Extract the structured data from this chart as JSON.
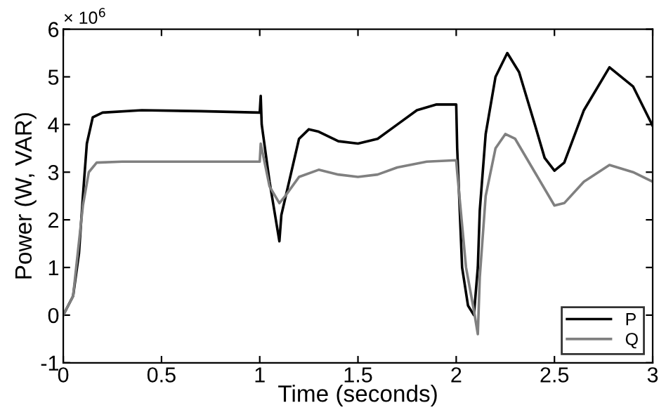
{
  "chart_data": {
    "type": "line",
    "xlabel": "Time (seconds)",
    "ylabel": "Power (W, VAR)",
    "annotations": [
      "× 10$^{6}$"
    ],
    "xlim": [
      0,
      3
    ],
    "xticks": [
      0,
      0.5,
      1,
      1.5,
      2,
      2.5,
      3
    ],
    "ylim": [
      -1,
      6
    ],
    "yticks": [
      -1,
      0,
      1,
      2,
      3,
      4,
      5,
      6
    ],
    "grid": false,
    "legend": "bottom right",
    "line_style": "solid",
    "marker": "none",
    "series": [
      {
        "name": "P",
        "color": "#000000",
        "x": [
          0,
          0.05,
          0.08,
          0.1,
          0.12,
          0.15,
          0.2,
          0.4,
          0.7,
          1.0,
          1.005,
          1.01,
          1.05,
          1.1,
          1.11,
          1.2,
          1.25,
          1.3,
          1.4,
          1.5,
          1.6,
          1.7,
          1.8,
          1.9,
          2.0,
          2.005,
          2.03,
          2.06,
          2.09,
          2.11,
          2.12,
          2.15,
          2.2,
          2.26,
          2.32,
          2.4,
          2.45,
          2.5,
          2.55,
          2.65,
          2.78,
          2.9,
          3.0
        ],
        "values": [
          0,
          0.4,
          1.3,
          2.5,
          3.6,
          4.15,
          4.25,
          4.3,
          4.28,
          4.25,
          4.6,
          4.0,
          2.8,
          1.55,
          2.1,
          3.7,
          3.9,
          3.85,
          3.65,
          3.6,
          3.7,
          4.0,
          4.3,
          4.42,
          4.42,
          3.5,
          1.0,
          0.2,
          0.0,
          1.0,
          2.2,
          3.8,
          5.0,
          5.5,
          5.1,
          4.0,
          3.3,
          3.03,
          3.2,
          4.3,
          5.2,
          4.8,
          3.97
        ]
      },
      {
        "name": "Q",
        "color": "#808080",
        "x": [
          0,
          0.05,
          0.1,
          0.13,
          0.17,
          0.3,
          1.0,
          1.005,
          1.05,
          1.1,
          1.13,
          1.2,
          1.3,
          1.4,
          1.5,
          1.6,
          1.7,
          1.85,
          2.0,
          2.005,
          2.05,
          2.09,
          2.11,
          2.12,
          2.15,
          2.2,
          2.25,
          2.3,
          2.4,
          2.5,
          2.55,
          2.65,
          2.78,
          2.9,
          3.0
        ],
        "values": [
          0,
          0.4,
          2.3,
          3.0,
          3.2,
          3.22,
          3.22,
          3.6,
          2.7,
          2.35,
          2.5,
          2.9,
          3.05,
          2.95,
          2.9,
          2.95,
          3.1,
          3.22,
          3.25,
          3.0,
          1.0,
          0.1,
          -0.4,
          0.8,
          2.5,
          3.5,
          3.8,
          3.7,
          3.0,
          2.3,
          2.35,
          2.8,
          3.15,
          3.0,
          2.8
        ]
      }
    ]
  }
}
